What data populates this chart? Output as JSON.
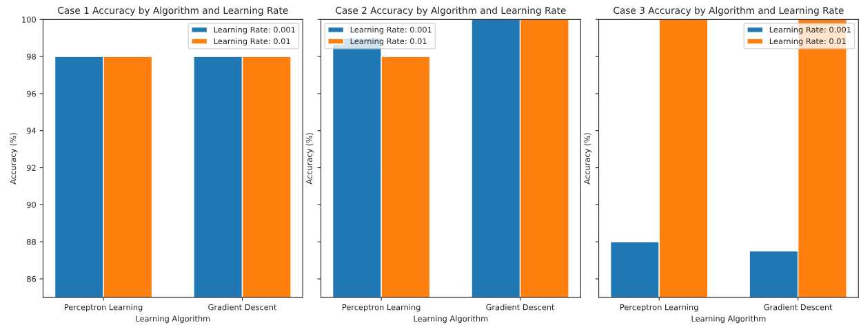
{
  "chart_data": [
    {
      "type": "bar",
      "title": "Case 1 Accuracy by Algorithm and Learning Rate",
      "xlabel": "Learning Algorithm",
      "ylabel": "Accuracy (%)",
      "categories": [
        "Perceptron Learning",
        "Gradient Descent"
      ],
      "series": [
        {
          "name": "Learning Rate: 0.001",
          "color": "#1f77b4",
          "values": [
            98,
            98
          ]
        },
        {
          "name": "Learning Rate: 0.01",
          "color": "#ff7f0e",
          "values": [
            98,
            98
          ]
        }
      ],
      "ylim": [
        85,
        100
      ],
      "yticks": [
        86,
        88,
        90,
        92,
        94,
        96,
        98,
        100
      ],
      "legend": "top right",
      "grid": false
    },
    {
      "type": "bar",
      "title": "Case 2 Accuracy by Algorithm and Learning Rate",
      "xlabel": "Learning Algorithm",
      "ylabel": "Accuracy (%)",
      "categories": [
        "Perceptron Learning",
        "Gradient Descent"
      ],
      "series": [
        {
          "name": "Learning Rate: 0.001",
          "color": "#1f77b4",
          "values": [
            99,
            100
          ]
        },
        {
          "name": "Learning Rate: 0.01",
          "color": "#ff7f0e",
          "values": [
            98,
            100
          ]
        }
      ],
      "ylim": [
        85,
        100
      ],
      "yticks": [
        86,
        88,
        90,
        92,
        94,
        96,
        98,
        100
      ],
      "tick_labels": "x",
      "legend": "top left",
      "grid": false
    },
    {
      "type": "bar",
      "title": "Case 3 Accuracy by Algorithm and Learning Rate",
      "xlabel": "Learning Algorithm",
      "ylabel": "Accuracy (%)",
      "categories": [
        "Perceptron Learning",
        "Gradient Descent"
      ],
      "series": [
        {
          "name": "Learning Rate: 0.001",
          "color": "#1f77b4",
          "values": [
            88,
            87.5
          ]
        },
        {
          "name": "Learning Rate: 0.01",
          "color": "#ff7f0e",
          "values": [
            100,
            100
          ]
        }
      ],
      "ylim": [
        85,
        100
      ],
      "yticks": [
        86,
        88,
        90,
        92,
        94,
        96,
        98,
        100
      ],
      "tick_labels": "x",
      "legend": "top right",
      "grid": false
    }
  ]
}
